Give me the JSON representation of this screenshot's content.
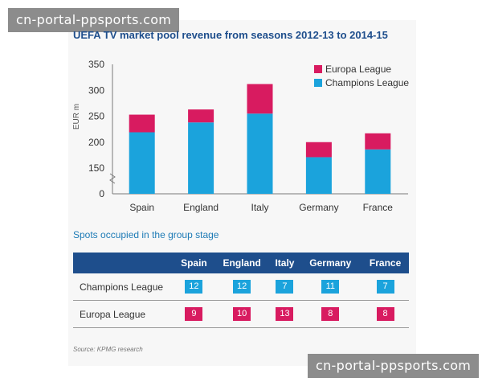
{
  "watermark": "cn-portal-ppsports.com",
  "colors": {
    "europa": "#d81b60",
    "champions": "#1ba3dc",
    "header": "#1e4e8c"
  },
  "chart_data": {
    "type": "bar",
    "stacked": true,
    "title": "UEFA TV market pool revenue from seasons 2012-13 to 2014-15",
    "xlabel": "",
    "ylabel": "EUR m",
    "ylim": [
      0,
      350
    ],
    "axis_break": true,
    "yticks": [
      "0",
      "150",
      "200",
      "250",
      "300",
      "350"
    ],
    "categories": [
      "Spain",
      "England",
      "Italy",
      "Germany",
      "France"
    ],
    "series": [
      {
        "name": "Champions League",
        "values": [
          219,
          238,
          255,
          171,
          186
        ]
      },
      {
        "name": "Europa League",
        "values": [
          34,
          25,
          57,
          29,
          31
        ]
      }
    ],
    "legend": [
      "Europa League",
      "Champions League"
    ],
    "legend_position": "top-right"
  },
  "spots": {
    "title": "Spots occupied in the group stage",
    "columns": [
      "Spain",
      "England",
      "Italy",
      "Germany",
      "France"
    ],
    "rows": [
      {
        "label": "Champions League",
        "values": [
          "12",
          "12",
          "7",
          "11",
          "7"
        ]
      },
      {
        "label": "Europa League",
        "values": [
          "9",
          "10",
          "13",
          "8",
          "8"
        ]
      }
    ]
  },
  "source": "Source: KPMG research"
}
